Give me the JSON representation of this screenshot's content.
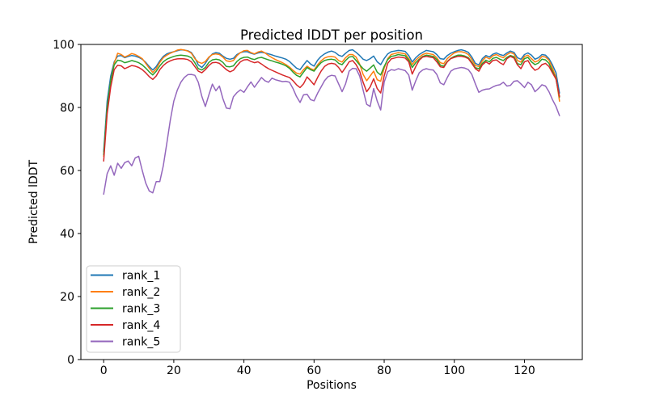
{
  "figure": {
    "background_color": "#ffffff",
    "axis_color": "#000000"
  },
  "chart_data": {
    "type": "line",
    "title": "Predicted lDDT per position",
    "xlabel": "Positions",
    "ylabel": "Predicted lDDT",
    "xlim": [
      -6.5,
      136.5
    ],
    "ylim": [
      0,
      100
    ],
    "x_ticks": [
      0,
      20,
      40,
      60,
      80,
      100,
      120
    ],
    "y_ticks": [
      0,
      20,
      40,
      60,
      80,
      100
    ],
    "grid": false,
    "legend_position": "lower left",
    "legend_entries": [
      "rank_1",
      "rank_2",
      "rank_3",
      "rank_4",
      "rank_5"
    ],
    "x": [
      0,
      1,
      2,
      3,
      4,
      5,
      6,
      7,
      8,
      9,
      10,
      11,
      12,
      13,
      14,
      15,
      16,
      17,
      18,
      19,
      20,
      21,
      22,
      23,
      24,
      25,
      26,
      27,
      28,
      29,
      30,
      31,
      32,
      33,
      34,
      35,
      36,
      37,
      38,
      39,
      40,
      41,
      42,
      43,
      44,
      45,
      46,
      47,
      48,
      49,
      50,
      51,
      52,
      53,
      54,
      55,
      56,
      57,
      58,
      59,
      60,
      61,
      62,
      63,
      64,
      65,
      66,
      67,
      68,
      69,
      70,
      71,
      72,
      73,
      74,
      75,
      76,
      77,
      78,
      79,
      80,
      81,
      82,
      83,
      84,
      85,
      86,
      87,
      88,
      89,
      90,
      91,
      92,
      93,
      94,
      95,
      96,
      97,
      98,
      99,
      100,
      101,
      102,
      103,
      104,
      105,
      106,
      107,
      108,
      109,
      110,
      111,
      112,
      113,
      114,
      115,
      116,
      117,
      118,
      119,
      120,
      121,
      122,
      123,
      124,
      125,
      126,
      127,
      128,
      129,
      130
    ],
    "series": [
      {
        "name": "rank_1",
        "color": "#1f77b4",
        "values": [
          66.0,
          82.0,
          90.0,
          94.5,
          96.3,
          96.5,
          95.8,
          96.2,
          96.5,
          96.3,
          95.9,
          95.3,
          94.3,
          93.0,
          91.9,
          93.0,
          94.8,
          96.2,
          97.0,
          97.4,
          97.7,
          98.0,
          98.3,
          98.2,
          98.0,
          97.4,
          95.8,
          93.5,
          92.7,
          94.0,
          95.8,
          97.0,
          97.4,
          97.2,
          96.3,
          95.6,
          95.3,
          95.6,
          96.8,
          97.4,
          97.7,
          97.7,
          97.2,
          96.9,
          97.3,
          97.5,
          97.3,
          97.0,
          96.7,
          96.3,
          96.0,
          95.7,
          95.3,
          94.6,
          93.5,
          92.5,
          92.0,
          93.5,
          94.9,
          93.8,
          93.1,
          95.0,
          96.2,
          97.0,
          97.6,
          97.9,
          97.5,
          96.6,
          96.2,
          97.2,
          98.1,
          98.3,
          97.5,
          96.5,
          95.3,
          94.9,
          95.5,
          96.3,
          94.5,
          93.6,
          95.5,
          97.0,
          97.7,
          97.9,
          98.1,
          98.0,
          97.8,
          96.5,
          94.4,
          95.8,
          96.8,
          97.5,
          98.1,
          97.9,
          97.7,
          96.8,
          95.5,
          95.3,
          96.5,
          97.2,
          97.7,
          98.1,
          98.3,
          98.0,
          97.5,
          96.0,
          94.0,
          93.5,
          95.5,
          96.5,
          96.0,
          96.9,
          97.3,
          96.8,
          96.5,
          97.3,
          97.9,
          97.5,
          95.8,
          95.3,
          96.8,
          97.3,
          96.6,
          95.3,
          95.8,
          96.8,
          96.6,
          95.5,
          93.5,
          91.0,
          84.6
        ]
      },
      {
        "name": "rank_2",
        "color": "#ff7f0e",
        "values": [
          64.5,
          80.0,
          88.5,
          94.0,
          97.2,
          96.8,
          96.0,
          96.5,
          97.1,
          96.8,
          96.2,
          95.5,
          94.0,
          92.5,
          91.1,
          92.3,
          94.3,
          95.8,
          96.6,
          97.2,
          97.7,
          98.2,
          98.4,
          98.2,
          97.9,
          97.2,
          95.5,
          94.4,
          94.0,
          94.6,
          96.0,
          96.8,
          97.0,
          96.8,
          96.0,
          94.8,
          94.6,
          94.9,
          96.4,
          97.4,
          98.0,
          98.1,
          97.4,
          97.0,
          97.6,
          97.9,
          97.3,
          96.5,
          95.8,
          95.2,
          94.7,
          94.2,
          93.6,
          92.8,
          91.8,
          90.9,
          90.6,
          92.0,
          93.1,
          92.3,
          91.9,
          93.5,
          94.8,
          95.7,
          96.1,
          96.2,
          96.0,
          94.9,
          94.4,
          95.8,
          96.8,
          96.8,
          96.0,
          93.8,
          90.5,
          88.5,
          90.0,
          91.5,
          88.8,
          88.3,
          92.5,
          95.5,
          96.8,
          97.1,
          97.4,
          97.2,
          97.0,
          95.5,
          93.6,
          95.0,
          96.0,
          96.8,
          97.2,
          97.0,
          96.8,
          95.8,
          94.2,
          93.9,
          95.5,
          96.5,
          97.3,
          97.7,
          97.7,
          97.4,
          96.8,
          95.2,
          93.3,
          93.0,
          94.8,
          96.0,
          95.4,
          96.4,
          96.8,
          96.2,
          95.8,
          96.8,
          97.4,
          97.0,
          94.9,
          94.4,
          96.2,
          96.6,
          95.5,
          94.4,
          94.9,
          96.2,
          96.0,
          95.0,
          92.5,
          89.5,
          82.0
        ]
      },
      {
        "name": "rank_3",
        "color": "#2ca02c",
        "values": [
          65.0,
          80.0,
          88.5,
          93.5,
          95.0,
          94.8,
          94.2,
          94.5,
          94.9,
          94.6,
          94.2,
          93.5,
          92.5,
          91.3,
          90.3,
          91.5,
          93.2,
          94.5,
          95.3,
          95.8,
          96.2,
          96.5,
          96.6,
          96.5,
          96.3,
          95.8,
          94.2,
          92.3,
          91.9,
          92.7,
          94.3,
          95.1,
          95.3,
          95.1,
          94.3,
          93.0,
          92.9,
          93.2,
          94.6,
          95.5,
          95.9,
          96.0,
          95.5,
          95.2,
          95.7,
          95.9,
          95.5,
          95.1,
          94.8,
          94.4,
          94.1,
          93.7,
          93.2,
          92.4,
          91.2,
          90.2,
          89.7,
          91.2,
          92.7,
          92.0,
          91.5,
          93.0,
          94.2,
          94.9,
          95.2,
          95.3,
          95.1,
          94.0,
          93.6,
          94.9,
          96.0,
          96.2,
          94.9,
          93.5,
          92.3,
          91.5,
          92.5,
          93.5,
          91.2,
          90.3,
          93.0,
          95.2,
          96.2,
          96.4,
          96.8,
          96.6,
          96.4,
          95.0,
          92.7,
          94.2,
          95.3,
          96.2,
          96.6,
          96.4,
          96.2,
          95.2,
          93.4,
          93.1,
          94.6,
          95.6,
          96.2,
          96.6,
          96.6,
          96.3,
          95.8,
          94.3,
          92.6,
          92.3,
          94.0,
          95.0,
          94.5,
          95.6,
          95.9,
          95.3,
          94.9,
          95.9,
          96.5,
          96.1,
          93.9,
          93.6,
          95.5,
          95.9,
          94.5,
          93.6,
          94.1,
          95.3,
          95.1,
          94.0,
          91.5,
          89.0,
          83.3
        ]
      },
      {
        "name": "rank_4",
        "color": "#d62728",
        "values": [
          63.0,
          78.0,
          86.5,
          92.0,
          93.4,
          93.2,
          92.3,
          92.8,
          93.3,
          93.1,
          92.7,
          92.0,
          91.0,
          89.8,
          88.9,
          90.0,
          92.0,
          93.3,
          94.2,
          94.8,
          95.2,
          95.4,
          95.5,
          95.4,
          95.2,
          94.5,
          93.0,
          91.5,
          91.0,
          92.0,
          93.3,
          94.2,
          94.3,
          94.0,
          93.0,
          92.0,
          91.3,
          91.8,
          93.2,
          94.5,
          95.1,
          95.2,
          94.6,
          94.2,
          94.5,
          93.8,
          93.0,
          92.3,
          91.8,
          91.3,
          90.8,
          90.3,
          89.9,
          89.5,
          88.5,
          87.2,
          86.3,
          87.5,
          89.7,
          88.5,
          87.2,
          89.5,
          91.5,
          93.0,
          93.8,
          94.0,
          93.8,
          92.7,
          91.1,
          92.7,
          94.5,
          94.9,
          93.6,
          91.5,
          88.0,
          85.0,
          86.5,
          89.1,
          86.0,
          84.6,
          90.0,
          94.0,
          95.4,
          95.7,
          96.0,
          95.9,
          95.7,
          94.5,
          90.6,
          93.0,
          95.0,
          96.0,
          96.2,
          96.0,
          95.8,
          94.5,
          92.9,
          92.7,
          94.5,
          95.5,
          95.9,
          96.2,
          96.2,
          96.0,
          95.5,
          94.0,
          92.3,
          91.5,
          93.5,
          94.5,
          93.8,
          94.9,
          95.1,
          94.2,
          93.6,
          95.5,
          96.2,
          95.7,
          93.5,
          92.3,
          94.5,
          94.9,
          93.0,
          91.8,
          92.3,
          93.6,
          94.0,
          93.0,
          91.0,
          89.0,
          83.5
        ]
      },
      {
        "name": "rank_5",
        "color": "#9467bd",
        "values": [
          52.5,
          59.0,
          61.5,
          58.5,
          62.3,
          60.7,
          62.5,
          63.0,
          61.5,
          64.0,
          64.5,
          60.0,
          56.0,
          53.5,
          52.9,
          56.5,
          56.5,
          61.5,
          68.5,
          76.0,
          82.0,
          85.5,
          88.0,
          89.5,
          90.4,
          90.5,
          90.2,
          88.0,
          83.5,
          80.3,
          84.0,
          87.4,
          85.3,
          86.8,
          82.8,
          79.8,
          79.6,
          83.4,
          84.7,
          85.6,
          84.8,
          86.5,
          88.1,
          86.4,
          88.0,
          89.5,
          88.5,
          88.0,
          89.3,
          88.8,
          88.5,
          88.2,
          88.3,
          88.0,
          86.0,
          83.5,
          81.6,
          84.0,
          84.2,
          82.5,
          82.1,
          84.5,
          86.5,
          88.5,
          89.8,
          90.2,
          90.0,
          87.5,
          85.0,
          87.5,
          91.5,
          92.4,
          92.3,
          90.0,
          85.5,
          81.0,
          80.3,
          86.0,
          82.0,
          79.2,
          88.0,
          91.3,
          92.0,
          91.8,
          92.3,
          92.0,
          91.7,
          90.3,
          85.5,
          88.5,
          91.0,
          91.9,
          92.3,
          92.0,
          91.9,
          90.5,
          87.8,
          87.2,
          89.5,
          91.5,
          92.2,
          92.5,
          92.7,
          92.5,
          92.0,
          90.5,
          87.5,
          84.8,
          85.5,
          85.8,
          85.9,
          86.5,
          87.0,
          87.2,
          88.0,
          86.8,
          87.0,
          88.3,
          88.5,
          87.5,
          86.3,
          88.0,
          87.2,
          85.0,
          86.0,
          87.2,
          86.8,
          85.0,
          82.5,
          80.3,
          77.4
        ]
      }
    ]
  }
}
